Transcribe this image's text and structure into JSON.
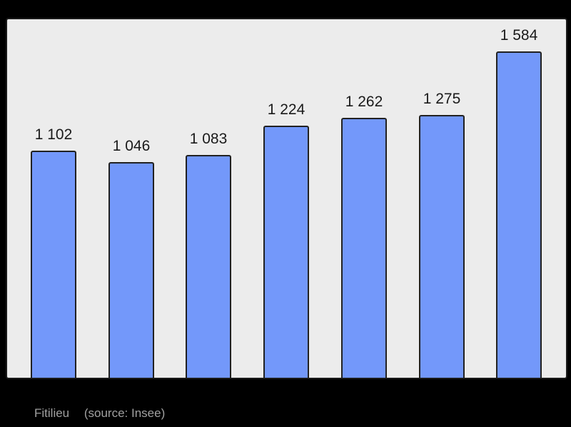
{
  "chart_data": {
    "type": "bar",
    "title": "",
    "categories": [
      "",
      "",
      "",
      "",
      "",
      "",
      ""
    ],
    "values": [
      1102,
      1046,
      1083,
      1224,
      1262,
      1275,
      1584
    ],
    "value_labels": [
      "1 102",
      "1 046",
      "1 083",
      "1 224",
      "1 262",
      "1 275",
      "1 584"
    ],
    "xlabel": "",
    "ylabel": "",
    "grid": false,
    "legend": false,
    "bar_color": "#7398FA",
    "bar_border_color": "#212121",
    "plot_background": "#ECECEC",
    "plot_border_color": "#1A1A1A",
    "label_color": "#1A1A1A",
    "page_background": "#000000"
  },
  "caption": {
    "name": "Fitilieu",
    "source": "(source: Insee)",
    "color": "#A0A0A0"
  }
}
